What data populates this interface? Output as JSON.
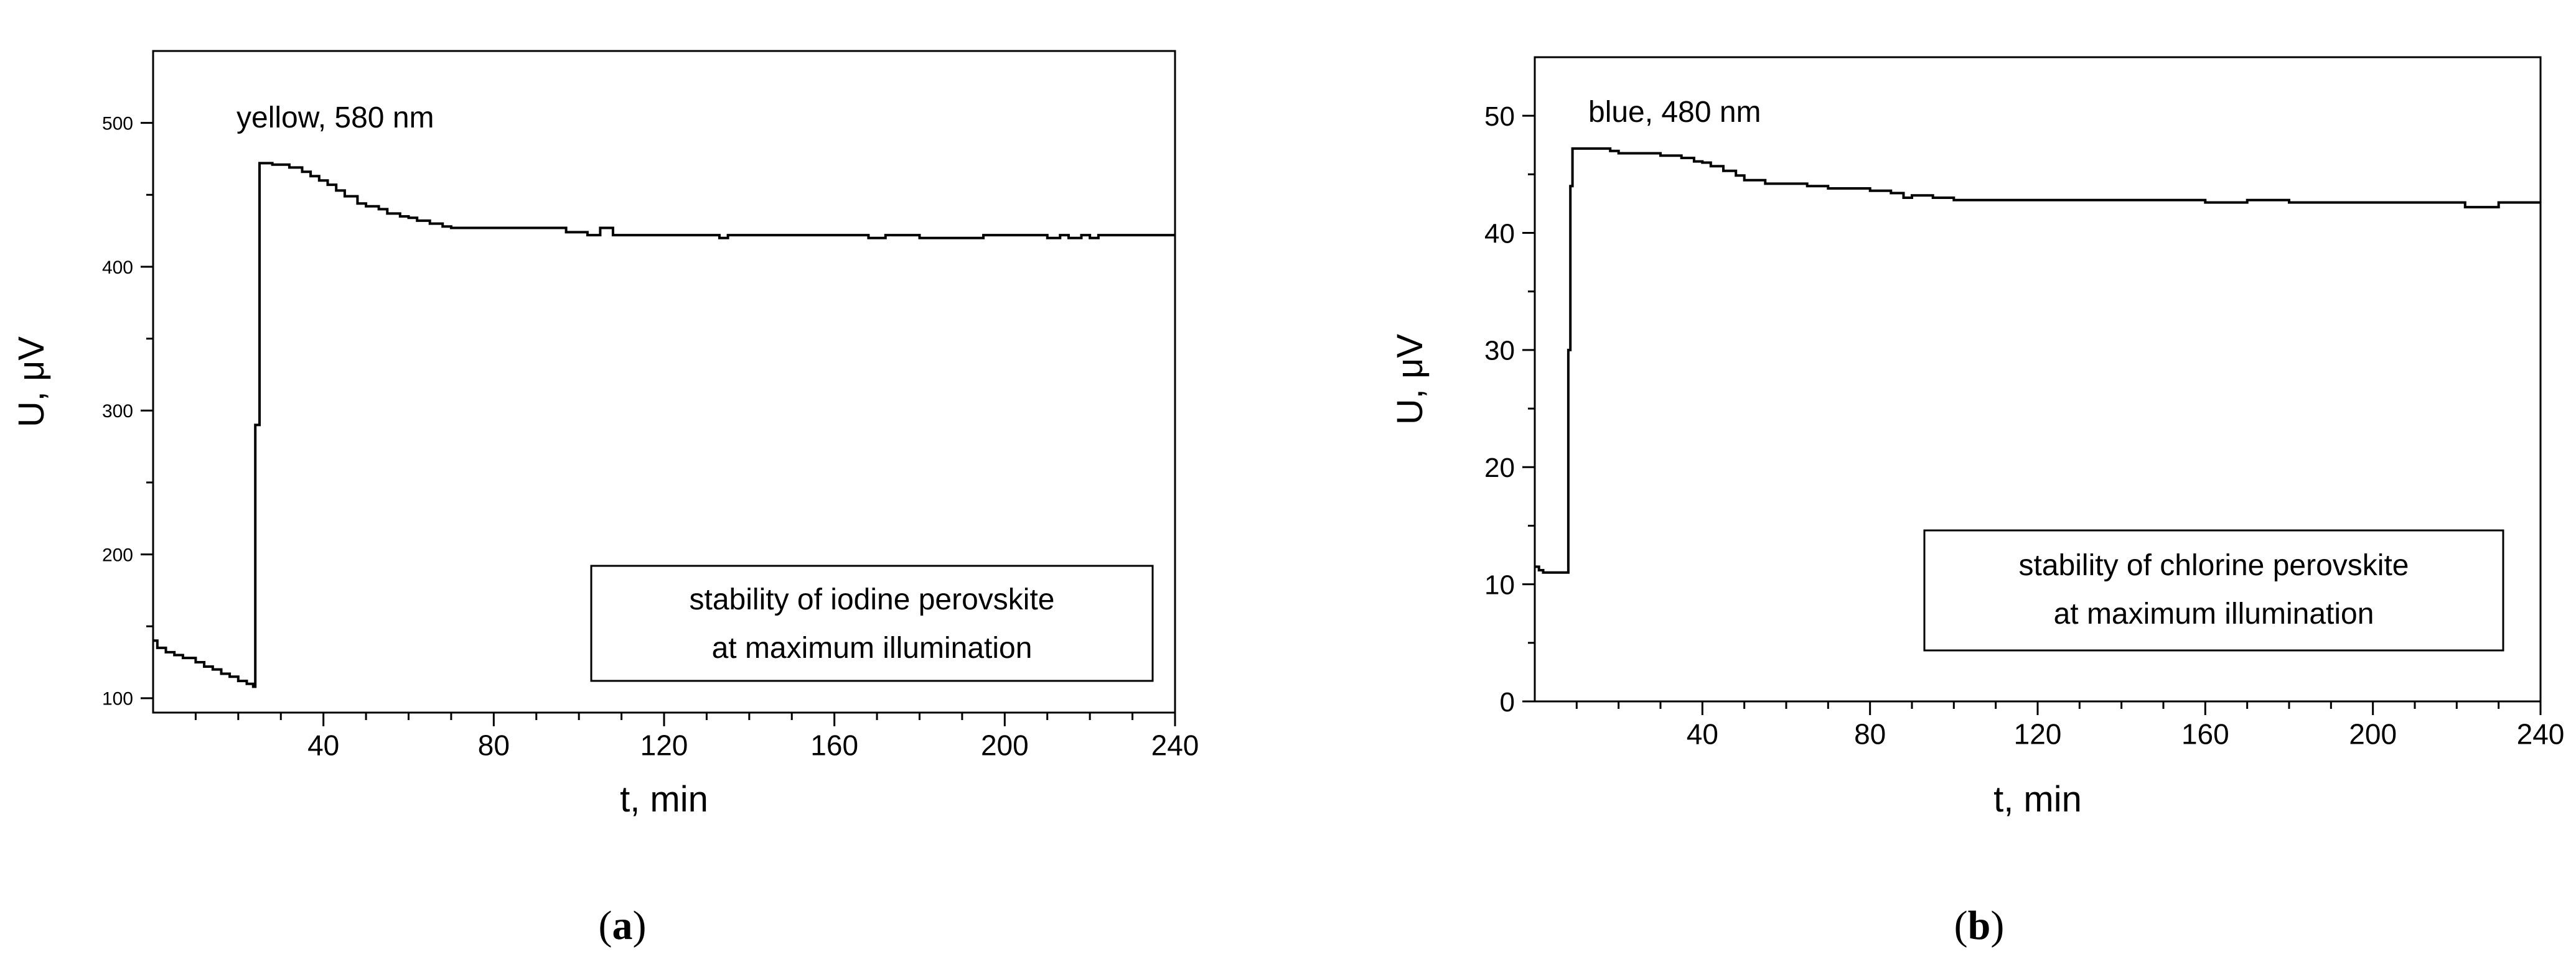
{
  "chart_data": [
    {
      "type": "line",
      "panel_label": "a",
      "annotation": "yellow, 580 nm",
      "legend_box": [
        "stability of iodine perovskite",
        "at maximum illumination"
      ],
      "legend_position": "bottom-right",
      "xlabel": "t, min",
      "ylabel": "U, μV",
      "xlim": [
        0,
        240
      ],
      "ylim": [
        90,
        550
      ],
      "xticks": [
        40,
        80,
        120,
        160,
        200,
        240
      ],
      "yticks": [
        100,
        200,
        300,
        400,
        500
      ],
      "grid": false,
      "series": [
        {
          "x": [
            0,
            1,
            3,
            5,
            7,
            10,
            12,
            14,
            16,
            18,
            20,
            22,
            23.5,
            24,
            25,
            28,
            32,
            35,
            37,
            39,
            41,
            43,
            45,
            48,
            50,
            53,
            55,
            58,
            60,
            62,
            65,
            68,
            70,
            75,
            80,
            85,
            90,
            95,
            97,
            100,
            102,
            105,
            108,
            110,
            115,
            120,
            125,
            130,
            133,
            135,
            140,
            150,
            160,
            165,
            168,
            172,
            175,
            180,
            185,
            190,
            195,
            200,
            205,
            210,
            213,
            215,
            218,
            220,
            222,
            225,
            230,
            235,
            240
          ],
          "y": [
            140,
            135,
            132,
            130,
            128,
            125,
            122,
            120,
            117,
            115,
            112,
            110,
            108,
            290,
            472,
            471,
            469,
            466,
            463,
            460,
            457,
            453,
            449,
            444,
            442,
            440,
            437,
            435,
            434,
            432,
            430,
            428,
            427,
            427,
            427,
            427,
            427,
            427,
            424,
            424,
            422,
            427,
            422,
            422,
            422,
            422,
            422,
            422,
            420,
            422,
            422,
            422,
            422,
            422,
            420,
            422,
            422,
            420,
            420,
            420,
            422,
            422,
            422,
            420,
            422,
            420,
            422,
            420,
            422,
            422,
            422,
            422,
            422
          ]
        }
      ]
    },
    {
      "type": "line",
      "panel_label": "b",
      "annotation": "blue, 480 nm",
      "legend_box": [
        "stability of chlorine perovskite",
        "at maximum illumination"
      ],
      "legend_position": "bottom-right",
      "xlabel": "t, min",
      "ylabel": "U, μV",
      "xlim": [
        0,
        240
      ],
      "ylim": [
        0,
        55
      ],
      "xticks": [
        40,
        80,
        120,
        160,
        200,
        240
      ],
      "yticks": [
        0,
        10,
        20,
        30,
        40,
        50
      ],
      "grid": false,
      "series": [
        {
          "x": [
            0,
            1,
            2,
            4,
            6,
            7.5,
            8,
            8.5,
            9,
            10,
            12,
            14,
            16,
            18,
            20,
            25,
            30,
            35,
            38,
            40,
            42,
            45,
            48,
            50,
            55,
            60,
            65,
            70,
            75,
            80,
            85,
            88,
            90,
            95,
            100,
            110,
            120,
            130,
            140,
            150,
            160,
            170,
            180,
            190,
            200,
            210,
            215,
            220,
            222,
            225,
            228,
            230,
            235,
            240
          ],
          "y": [
            11.5,
            11.2,
            11,
            11,
            11,
            11,
            30,
            44,
            47.2,
            47.2,
            47.2,
            47.2,
            47.2,
            47,
            46.8,
            46.8,
            46.6,
            46.4,
            46.1,
            46,
            45.7,
            45.3,
            44.9,
            44.5,
            44.2,
            44.2,
            44,
            43.8,
            43.8,
            43.6,
            43.4,
            43,
            43.2,
            43,
            42.8,
            42.8,
            42.8,
            42.8,
            42.8,
            42.8,
            42.6,
            42.8,
            42.6,
            42.6,
            42.6,
            42.6,
            42.6,
            42.6,
            42.2,
            42.2,
            42.2,
            42.6,
            42.6,
            42.6
          ]
        }
      ]
    }
  ]
}
